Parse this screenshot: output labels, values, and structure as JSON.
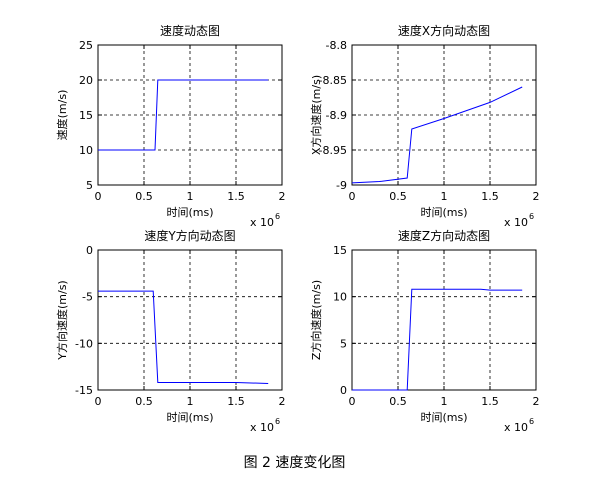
{
  "caption": "图 2  速度变化图",
  "chart_data": [
    {
      "type": "line",
      "title": "速度动态图",
      "xlabel": "时间(ms)",
      "ylabel": "速度(m/s)",
      "x_multiplier": "x 10",
      "x_exponent": "6",
      "xlim": [
        0,
        2
      ],
      "ylim": [
        5,
        25
      ],
      "xticks": [
        "0",
        "0.5",
        "1",
        "1.5",
        "2"
      ],
      "yticks": [
        "25",
        "20",
        "15",
        "10",
        "5"
      ],
      "grid": true,
      "series": [
        {
          "color": "#0000ff",
          "x": [
            0,
            0.6,
            0.62,
            0.65,
            1.0,
            1.5,
            1.85
          ],
          "y": [
            10,
            10,
            10,
            20,
            20,
            20,
            20
          ]
        }
      ]
    },
    {
      "type": "line",
      "title": "速度X方向动态图",
      "xlabel": "时间(ms)",
      "ylabel": "X方向速度(m/s)",
      "x_multiplier": "x 10",
      "x_exponent": "6",
      "xlim": [
        0,
        2
      ],
      "ylim": [
        -9,
        -8.8
      ],
      "xticks": [
        "0",
        "0.5",
        "1",
        "1.5",
        "2"
      ],
      "yticks": [
        "-8.8",
        "-8.85",
        "-8.9",
        "-8.95",
        "-9"
      ],
      "grid": true,
      "series": [
        {
          "color": "#0000ff",
          "x": [
            0,
            0.3,
            0.6,
            0.65,
            1.0,
            1.5,
            1.85
          ],
          "y": [
            -8.997,
            -8.995,
            -8.99,
            -8.92,
            -8.905,
            -8.882,
            -8.86
          ]
        }
      ]
    },
    {
      "type": "line",
      "title": "速度Y方向动态图",
      "xlabel": "时间(ms)",
      "ylabel": "Y方向速度(m/s)",
      "x_multiplier": "x 10",
      "x_exponent": "6",
      "xlim": [
        0,
        2
      ],
      "ylim": [
        -15,
        0
      ],
      "xticks": [
        "0",
        "0.5",
        "1",
        "1.5",
        "2"
      ],
      "yticks": [
        "0",
        "-5",
        "-10",
        "-15"
      ],
      "grid": true,
      "series": [
        {
          "color": "#0000ff",
          "x": [
            0,
            0.3,
            0.6,
            0.65,
            1.0,
            1.5,
            1.85
          ],
          "y": [
            -4.4,
            -4.4,
            -4.4,
            -14.2,
            -14.2,
            -14.2,
            -14.3
          ]
        }
      ]
    },
    {
      "type": "line",
      "title": "速度Z方向动态图",
      "xlabel": "时间(ms)",
      "ylabel": "Z方向速度(m/s)",
      "x_multiplier": "x 10",
      "x_exponent": "6",
      "xlim": [
        0,
        2
      ],
      "ylim": [
        0,
        15
      ],
      "xticks": [
        "0",
        "0.5",
        "1",
        "1.5",
        "2"
      ],
      "yticks": [
        "15",
        "10",
        "5",
        "0"
      ],
      "grid": true,
      "series": [
        {
          "color": "#0000ff",
          "x": [
            0,
            0.3,
            0.6,
            0.65,
            1.0,
            1.4,
            1.5,
            1.85
          ],
          "y": [
            0,
            0,
            0,
            10.8,
            10.8,
            10.8,
            10.7,
            10.7
          ]
        }
      ]
    }
  ]
}
